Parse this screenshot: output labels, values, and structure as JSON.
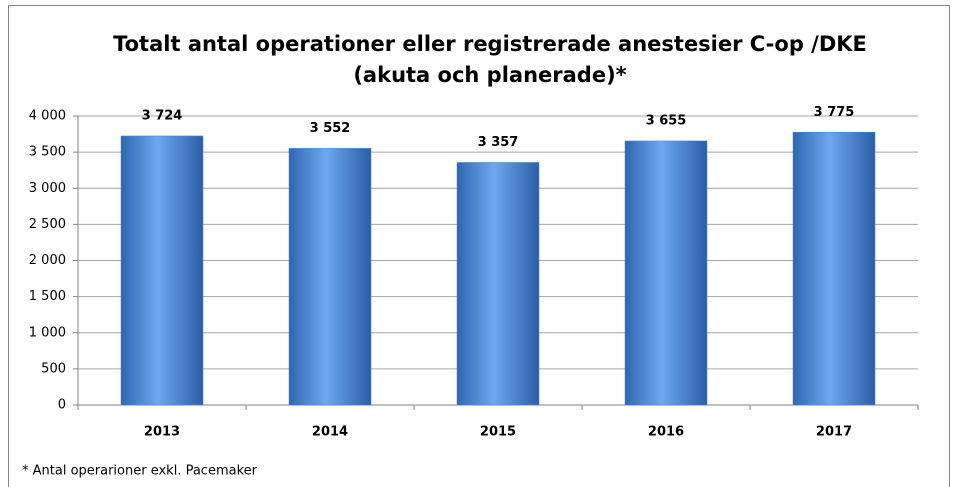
{
  "chart_data": {
    "type": "bar",
    "title": [
      "Totalt antal operationer eller registrerade anestesier C-op /DKE",
      "(akuta och planerade)*"
    ],
    "categories": [
      "2013",
      "2014",
      "2015",
      "2016",
      "2017"
    ],
    "values": [
      3724,
      3552,
      3357,
      3655,
      3775
    ],
    "value_labels": [
      "3 724",
      "3 552",
      "3 357",
      "3 655",
      "3 775"
    ],
    "color": "#4a86d8",
    "ylim": [
      0,
      4000
    ],
    "yticks": [
      0,
      500,
      {
        "value": 1000,
        "label": "1 000"
      },
      {
        "value": 1500,
        "label": "1 500"
      },
      {
        "value": 2000,
        "label": "2 000"
      },
      {
        "value": 2500,
        "label": "2 500"
      },
      {
        "value": 3000,
        "label": "3 000"
      },
      {
        "value": 3500,
        "label": "3 500"
      },
      {
        "value": 4000,
        "label": "4 000"
      }
    ],
    "grid": true,
    "annotation": "* Antal operarioner exkl. Pacemaker"
  }
}
